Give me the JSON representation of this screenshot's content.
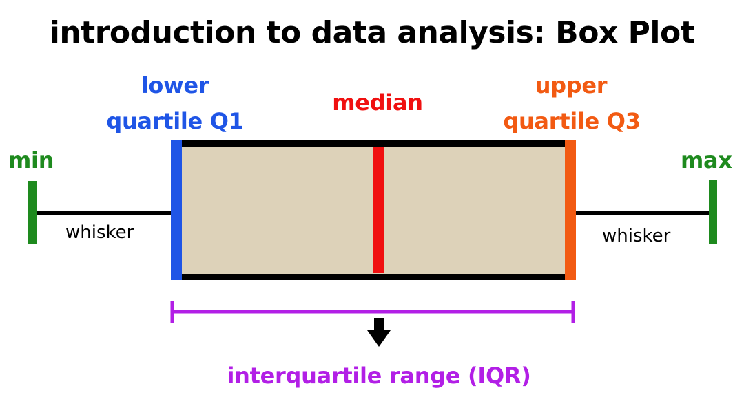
{
  "title": "introduction to data analysis: Box Plot",
  "labels": {
    "min": "min",
    "max": "max",
    "q1_line1": "lower",
    "q1_line2": "quartile Q1",
    "median": "median",
    "q3_line1": "upper",
    "q3_line2": "quartile Q3",
    "whisker_left": "whisker",
    "whisker_right": "whisker",
    "iqr": "interquartile range (IQR)"
  },
  "colors": {
    "min_max": "#1e8a1e",
    "q1": "#1f55e6",
    "median": "#f01010",
    "q3": "#f25a12",
    "iqr": "#b21fe6",
    "box_fill": "#ddd2b9",
    "outline": "#000000"
  }
}
